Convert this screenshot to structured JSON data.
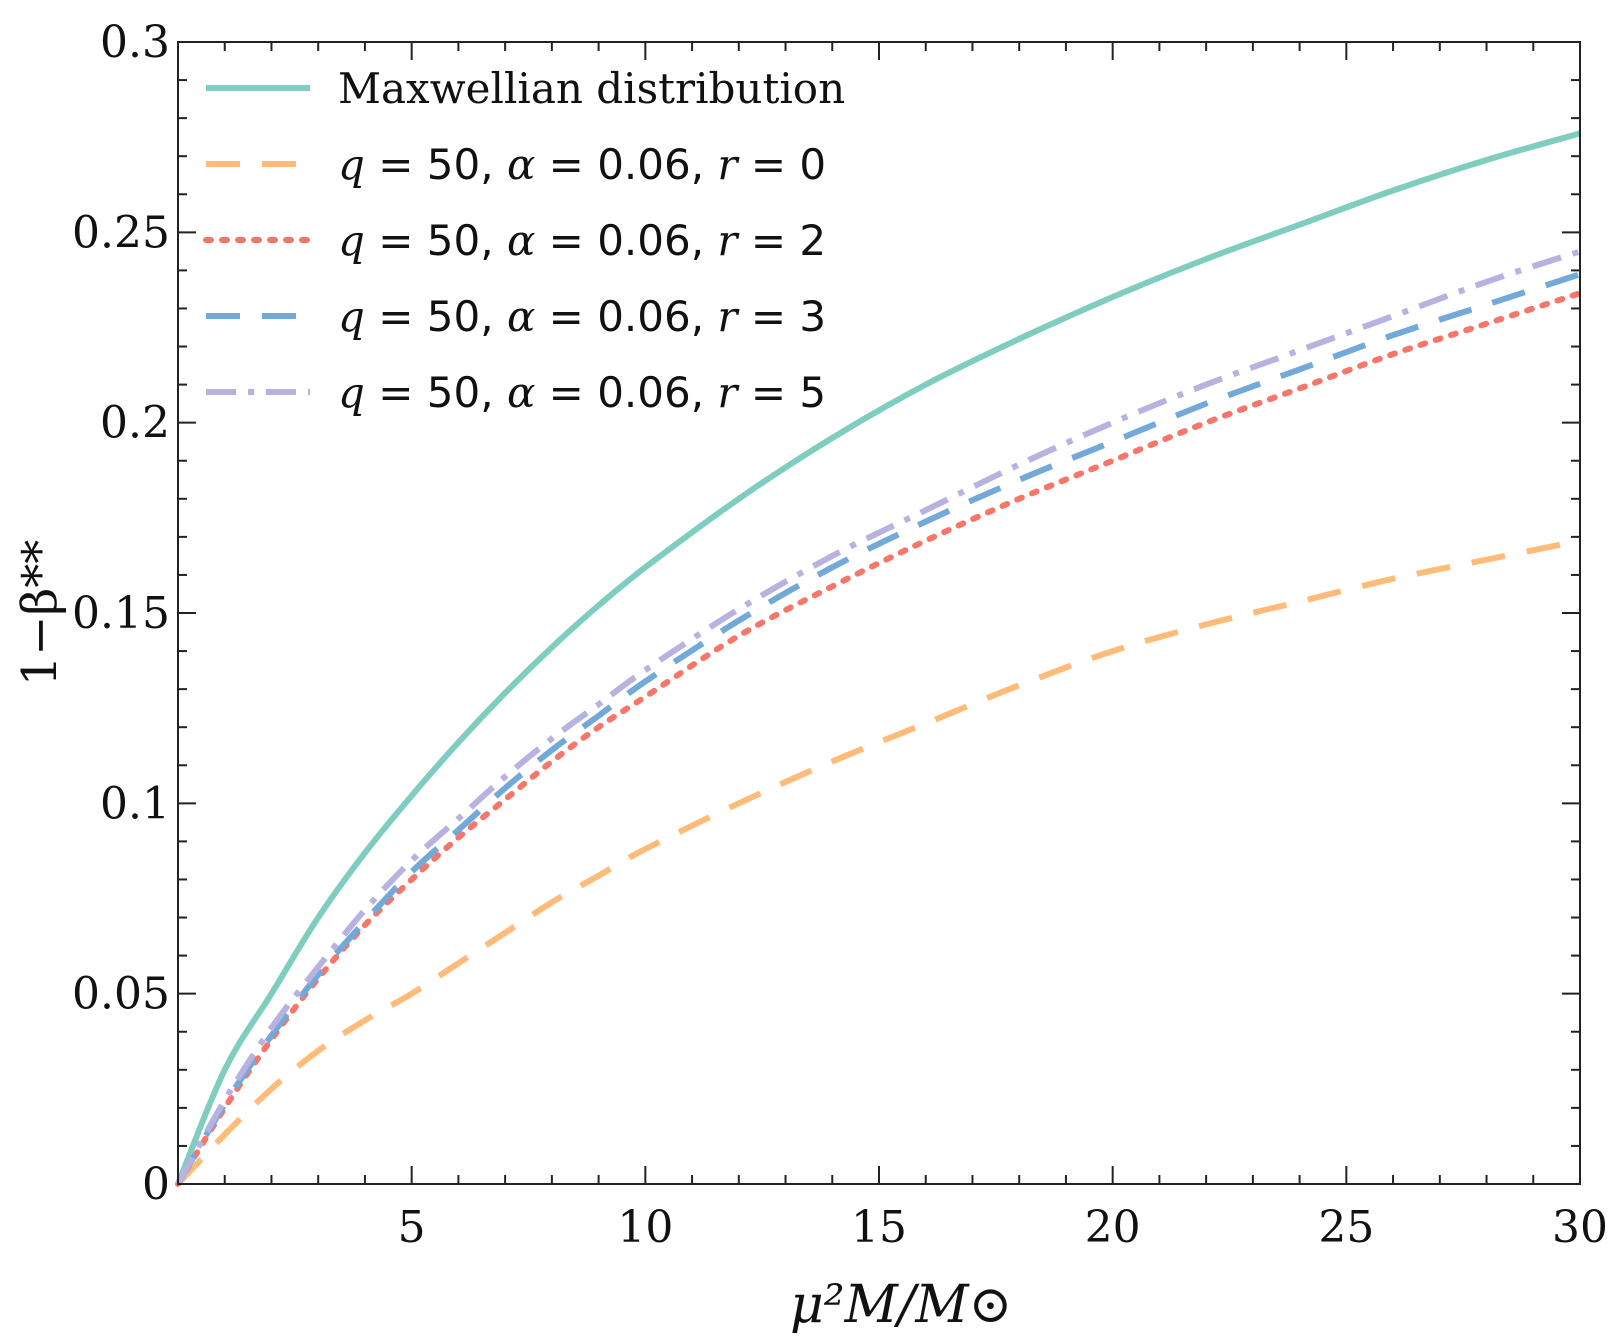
{
  "chart_data": {
    "type": "line",
    "title": "",
    "xlabel": "μ²M/M⊙",
    "ylabel": "1−β**",
    "xlim": [
      0,
      30
    ],
    "ylim": [
      0,
      0.3
    ],
    "x_ticks": [
      5,
      10,
      15,
      20,
      25,
      30
    ],
    "x_tick_labels": [
      "5",
      "10",
      "15",
      "20",
      "25",
      "30"
    ],
    "y_ticks": [
      0,
      0.05,
      0.1,
      0.15,
      0.2,
      0.25,
      0.3
    ],
    "y_tick_labels": [
      "0",
      "0.05",
      "0.1",
      "0.15",
      "0.2",
      "0.25",
      "0.3"
    ],
    "grid": false,
    "legend_position": "top-left",
    "x": [
      0,
      1,
      2,
      3,
      4,
      5,
      6,
      7,
      8,
      9,
      10,
      12,
      14,
      16,
      18,
      20,
      22,
      24,
      26,
      28,
      30
    ],
    "series": [
      {
        "name": "Maxwellian distribution",
        "label_text": "Maxwellian distribution",
        "color": "#7fcdbf",
        "style": "solid",
        "values": [
          0,
          0.03,
          0.05,
          0.07,
          0.087,
          0.102,
          0.116,
          0.129,
          0.141,
          0.152,
          0.162,
          0.18,
          0.196,
          0.21,
          0.222,
          0.233,
          0.243,
          0.252,
          0.261,
          0.269,
          0.276
        ]
      },
      {
        "name": "q = 50, α = 0.06, r = 0",
        "label_q": "q",
        "label_q_val": "50",
        "label_a": "α",
        "label_a_val": "0.06",
        "label_r": "r",
        "label_r_val": "0",
        "color": "#ffbb77",
        "style": "dashed",
        "values": [
          0,
          0.013,
          0.025,
          0.035,
          0.043,
          0.05,
          0.058,
          0.066,
          0.074,
          0.081,
          0.088,
          0.1,
          0.111,
          0.121,
          0.131,
          0.14,
          0.147,
          0.153,
          0.159,
          0.164,
          0.169
        ]
      },
      {
        "name": "q = 50, α = 0.06, r = 2",
        "label_q": "q",
        "label_q_val": "50",
        "label_a": "α",
        "label_a_val": "0.06",
        "label_r": "r",
        "label_r_val": "2",
        "color": "#f7766a",
        "style": "dotted",
        "values": [
          0,
          0.02,
          0.038,
          0.054,
          0.068,
          0.08,
          0.091,
          0.101,
          0.111,
          0.12,
          0.128,
          0.144,
          0.157,
          0.169,
          0.18,
          0.19,
          0.2,
          0.209,
          0.218,
          0.226,
          0.234
        ]
      },
      {
        "name": "q = 50, α = 0.06, r = 3",
        "label_q": "q",
        "label_q_val": "50",
        "label_a": "α",
        "label_a_val": "0.06",
        "label_r": "r",
        "label_r_val": "3",
        "color": "#73a9d8",
        "style": "dashed",
        "values": [
          0,
          0.021,
          0.039,
          0.055,
          0.069,
          0.082,
          0.093,
          0.104,
          0.114,
          0.123,
          0.132,
          0.148,
          0.162,
          0.174,
          0.185,
          0.195,
          0.205,
          0.214,
          0.223,
          0.231,
          0.239
        ]
      },
      {
        "name": "q = 50, α = 0.06, r = 5",
        "label_q": "q",
        "label_q_val": "50",
        "label_a": "α",
        "label_a_val": "0.06",
        "label_r": "r",
        "label_r_val": "5",
        "color": "#b8b2e0",
        "style": "dashdot",
        "values": [
          0,
          0.022,
          0.041,
          0.057,
          0.072,
          0.085,
          0.096,
          0.107,
          0.117,
          0.126,
          0.135,
          0.151,
          0.165,
          0.177,
          0.189,
          0.2,
          0.21,
          0.219,
          0.228,
          0.237,
          0.245
        ]
      }
    ]
  }
}
